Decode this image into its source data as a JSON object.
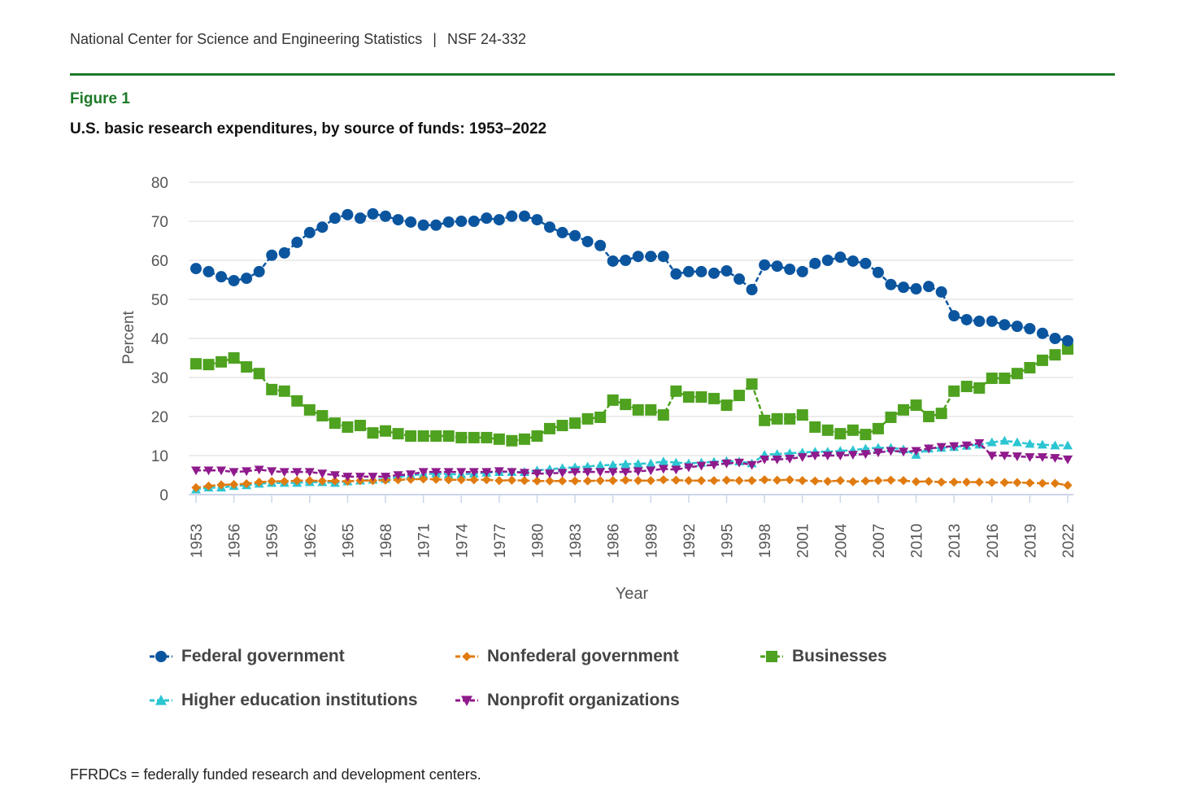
{
  "header": {
    "org": "National Center for Science and Engineering Statistics",
    "separator": "|",
    "report": "NSF 24-332"
  },
  "figure_label": "Figure 1",
  "footnote": "FFRDCs = federally funded research and development centers.",
  "chart_data": {
    "type": "line",
    "title": "U.S. basic research expenditures, by source of funds: 1953–2022",
    "xlabel": "Year",
    "ylabel": "Percent",
    "x_start": 1953,
    "x_end": 2022,
    "ylim": [
      0,
      80
    ],
    "yticks": [
      0,
      10,
      20,
      30,
      40,
      50,
      60,
      70,
      80
    ],
    "xticks": [
      1953,
      1956,
      1959,
      1962,
      1965,
      1968,
      1971,
      1974,
      1977,
      1980,
      1983,
      1986,
      1989,
      1992,
      1995,
      1998,
      2001,
      2004,
      2007,
      2010,
      2013,
      2016,
      2019,
      2022
    ],
    "grid": true,
    "legend_placement": "bottom",
    "series": [
      {
        "name": "Federal government",
        "color": "#0b559f",
        "marker": "circle",
        "values": [
          57.9,
          57.1,
          55.8,
          54.8,
          55.4,
          57.1,
          61.3,
          61.9,
          64.6,
          67.1,
          68.5,
          70.8,
          71.7,
          70.8,
          71.9,
          71.3,
          70.4,
          69.8,
          69.0,
          69.0,
          69.8,
          70.0,
          70.0,
          70.8,
          70.4,
          71.3,
          71.3,
          70.4,
          68.5,
          67.1,
          66.3,
          64.8,
          63.8,
          59.8,
          60.0,
          61.0,
          61.0,
          61.0,
          56.5,
          57.1,
          57.1,
          56.7,
          57.3,
          55.2,
          52.5,
          58.8,
          58.5,
          57.7,
          57.1,
          59.2,
          60.0,
          60.8,
          59.8,
          59.2,
          56.9,
          53.8,
          53.1,
          52.7,
          53.3,
          51.9,
          45.8,
          44.8,
          44.4,
          44.4,
          43.5,
          43.1,
          42.5,
          41.3,
          40.0,
          39.4
        ]
      },
      {
        "name": "Nonfederal government",
        "color": "#e07b10",
        "marker": "diamond",
        "values": [
          1.8,
          2.2,
          2.5,
          2.6,
          2.8,
          3.2,
          3.4,
          3.4,
          3.6,
          3.6,
          3.5,
          3.5,
          3.4,
          3.6,
          3.6,
          3.7,
          3.8,
          3.9,
          4.0,
          3.9,
          3.8,
          3.8,
          3.8,
          3.8,
          3.6,
          3.7,
          3.6,
          3.5,
          3.5,
          3.5,
          3.5,
          3.5,
          3.6,
          3.6,
          3.7,
          3.6,
          3.6,
          3.8,
          3.7,
          3.6,
          3.6,
          3.6,
          3.7,
          3.6,
          3.6,
          3.8,
          3.7,
          3.8,
          3.6,
          3.5,
          3.4,
          3.6,
          3.3,
          3.5,
          3.6,
          3.7,
          3.6,
          3.3,
          3.4,
          3.2,
          3.2,
          3.2,
          3.2,
          3.1,
          3.1,
          3.1,
          3.0,
          2.9,
          2.9,
          2.4
        ]
      },
      {
        "name": "Businesses",
        "color": "#4ea21f",
        "marker": "square",
        "values": [
          33.5,
          33.3,
          34.0,
          35.0,
          32.7,
          31.0,
          26.9,
          26.5,
          24.0,
          21.7,
          20.2,
          18.3,
          17.3,
          17.7,
          15.8,
          16.3,
          15.6,
          15.0,
          15.0,
          15.0,
          15.0,
          14.6,
          14.6,
          14.6,
          14.2,
          13.8,
          14.2,
          15.0,
          16.9,
          17.7,
          18.3,
          19.4,
          19.8,
          24.2,
          23.1,
          21.7,
          21.7,
          20.4,
          26.5,
          25.0,
          25.0,
          24.6,
          22.9,
          25.4,
          28.3,
          19.0,
          19.4,
          19.4,
          20.4,
          17.3,
          16.5,
          15.6,
          16.5,
          15.4,
          16.9,
          19.8,
          21.7,
          22.9,
          20.0,
          20.8,
          26.5,
          27.7,
          27.3,
          29.8,
          29.8,
          31.0,
          32.5,
          34.4,
          35.8,
          37.3
        ]
      },
      {
        "name": "Higher education institutions",
        "color": "#2cc5d2",
        "marker": "triangle-up",
        "values": [
          1.3,
          1.8,
          1.8,
          2.2,
          2.4,
          2.8,
          3.0,
          3.0,
          3.0,
          3.2,
          3.2,
          3.0,
          3.4,
          3.6,
          3.8,
          4.0,
          4.5,
          5.0,
          5.2,
          5.4,
          5.2,
          5.2,
          5.4,
          5.6,
          5.8,
          5.8,
          5.8,
          6.2,
          6.5,
          6.8,
          7.0,
          7.2,
          7.5,
          7.6,
          7.8,
          7.9,
          8.0,
          8.5,
          8.2,
          8.0,
          8.2,
          8.4,
          8.6,
          8.5,
          8.0,
          10.2,
          10.4,
          10.6,
          10.8,
          11.0,
          11.0,
          11.2,
          11.4,
          11.8,
          12.0,
          12.0,
          11.6,
          10.2,
          11.8,
          12.0,
          12.2,
          12.5,
          12.8,
          13.4,
          13.8,
          13.4,
          13.0,
          12.8,
          12.6,
          12.6
        ]
      },
      {
        "name": "Nonprofit organizations",
        "color": "#8f1a8c",
        "marker": "triangle-down",
        "values": [
          6.2,
          6.2,
          6.2,
          5.8,
          6.0,
          6.4,
          6.0,
          5.8,
          5.8,
          5.8,
          5.4,
          5.0,
          4.6,
          4.6,
          4.6,
          4.6,
          5.0,
          5.2,
          5.8,
          5.8,
          5.8,
          5.8,
          5.8,
          5.8,
          6.0,
          5.8,
          5.6,
          5.4,
          5.4,
          5.6,
          5.8,
          5.8,
          5.8,
          5.8,
          5.8,
          6.0,
          6.2,
          6.6,
          6.4,
          7.0,
          7.4,
          7.6,
          8.0,
          8.2,
          7.6,
          9.0,
          9.0,
          9.2,
          9.6,
          10.0,
          10.0,
          10.0,
          10.2,
          10.4,
          10.8,
          11.2,
          11.0,
          11.2,
          11.8,
          12.2,
          12.4,
          12.6,
          13.2,
          10.0,
          10.0,
          9.8,
          9.6,
          9.6,
          9.4,
          9.0
        ]
      }
    ]
  }
}
